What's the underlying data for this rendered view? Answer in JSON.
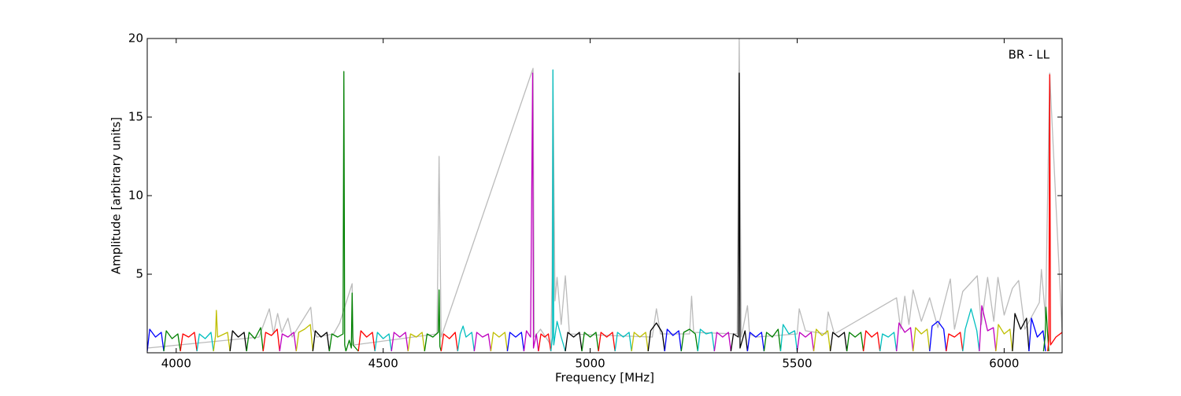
{
  "chart_data": {
    "type": "line",
    "annotation": "BR - LL",
    "x_label": "Frequency [MHz]",
    "y_label": "Amplitude [arbitrary units]",
    "xlim": [
      3930,
      6140
    ],
    "xticks": [
      4000,
      4500,
      5000,
      5500,
      6000
    ],
    "ylim": [
      0,
      20
    ],
    "yticks": [
      5,
      10,
      15,
      20
    ],
    "series": [
      {
        "color": "#bbbbbb",
        "x": [
          3930,
          4200,
          4225,
          4235,
          4245,
          4255,
          4270,
          4280,
          4325,
          4330,
          4340,
          4380,
          4395,
          4425,
          4426,
          4430,
          4630,
          4635,
          4640,
          4862,
          4865,
          4880,
          4905,
          4908,
          4910,
          4915,
          4920,
          4930,
          4940,
          4950,
          5150,
          5160,
          5170,
          5240,
          5245,
          5250,
          5355,
          5360,
          5365,
          5380,
          5385,
          5400,
          5500,
          5505,
          5520,
          5570,
          5575,
          5590,
          5740,
          5750,
          5760,
          5770,
          5780,
          5800,
          5820,
          5840,
          5870,
          5880,
          5900,
          5935,
          5945,
          5960,
          5975,
          5985,
          6000,
          6020,
          6035,
          6050,
          6085,
          6090,
          6100,
          6110,
          6140
        ],
        "values": [
          0.3,
          1.0,
          2.8,
          1.2,
          2.5,
          1.3,
          2.2,
          1.0,
          2.9,
          1.5,
          1.0,
          1.2,
          1.9,
          4.4,
          1.0,
          0.5,
          1.2,
          12.5,
          1.0,
          18.1,
          1.0,
          1.5,
          0.5,
          4.8,
          18.0,
          3.3,
          4.8,
          1.8,
          4.9,
          1.2,
          1.0,
          2.8,
          1.2,
          1.2,
          3.6,
          1.3,
          1.2,
          20.0,
          1.0,
          3.0,
          1.2,
          1.0,
          1.2,
          2.8,
          1.4,
          1.2,
          2.6,
          1.2,
          3.5,
          1.5,
          3.6,
          1.8,
          4.0,
          2.0,
          3.5,
          1.6,
          4.7,
          1.5,
          3.9,
          4.9,
          1.8,
          4.8,
          2.0,
          4.8,
          2.4,
          4.1,
          4.6,
          1.5,
          3.2,
          5.3,
          2.2,
          17.8,
          1.3
        ]
      },
      {
        "color": "#0000ff",
        "x": [
          3930,
          3936,
          3950,
          3964,
          3970
        ],
        "values": [
          0.1,
          1.5,
          1.0,
          1.3,
          0.1
        ]
      },
      {
        "color": "#008000",
        "x": [
          3970,
          3976,
          3990,
          4004,
          4010
        ],
        "values": [
          0.1,
          1.4,
          0.9,
          1.2,
          0.1
        ]
      },
      {
        "color": "#ff0000",
        "x": [
          4010,
          4016,
          4030,
          4044,
          4050
        ],
        "values": [
          0.1,
          1.2,
          1.0,
          1.3,
          0.1
        ]
      },
      {
        "color": "#00bfbf",
        "x": [
          4050,
          4056,
          4070,
          4084,
          4090
        ],
        "values": [
          0.1,
          1.2,
          0.9,
          1.3,
          0.1
        ]
      },
      {
        "color": "#bfbf00",
        "x": [
          4090,
          4095,
          4097,
          4100,
          4124,
          4130
        ],
        "values": [
          0.1,
          1.1,
          2.7,
          1.0,
          1.3,
          0.1
        ]
      },
      {
        "color": "#000000",
        "x": [
          4130,
          4136,
          4150,
          4164,
          4170
        ],
        "values": [
          0.1,
          1.4,
          1.0,
          1.3,
          0.1
        ]
      },
      {
        "color": "#008000",
        "x": [
          4170,
          4176,
          4190,
          4204,
          4210
        ],
        "values": [
          0.1,
          1.3,
          0.9,
          1.6,
          0.1
        ]
      },
      {
        "color": "#ff0000",
        "x": [
          4210,
          4216,
          4230,
          4244,
          4250
        ],
        "values": [
          0.1,
          1.3,
          1.1,
          1.5,
          0.1
        ]
      },
      {
        "color": "#bf00bf",
        "x": [
          4250,
          4256,
          4270,
          4284,
          4290
        ],
        "values": [
          0.1,
          1.2,
          1.0,
          1.3,
          0.1
        ]
      },
      {
        "color": "#bfbf00",
        "x": [
          4290,
          4296,
          4310,
          4324,
          4330
        ],
        "values": [
          0.1,
          1.3,
          1.5,
          1.8,
          0.1
        ]
      },
      {
        "color": "#000000",
        "x": [
          4330,
          4336,
          4350,
          4364,
          4370
        ],
        "values": [
          0.1,
          1.4,
          1.0,
          1.3,
          0.1
        ]
      },
      {
        "color": "#008000",
        "x": [
          4370,
          4376,
          4390,
          4403,
          4405,
          4407,
          4410
        ],
        "values": [
          0.1,
          1.2,
          1.0,
          1.2,
          17.9,
          0.5,
          0.1
        ]
      },
      {
        "color": "#008000",
        "x": [
          4410,
          4418,
          4423,
          4425,
          4427,
          4440
        ],
        "values": [
          0.1,
          0.8,
          0.3,
          3.8,
          0.5,
          0.1
        ]
      },
      {
        "color": "#ff0000",
        "x": [
          4440,
          4446,
          4460,
          4474,
          4480
        ],
        "values": [
          0.1,
          1.4,
          1.0,
          1.3,
          0.1
        ]
      },
      {
        "color": "#00bfbf",
        "x": [
          4480,
          4486,
          4500,
          4514,
          4520
        ],
        "values": [
          0.1,
          1.3,
          0.9,
          1.2,
          0.1
        ]
      },
      {
        "color": "#bf00bf",
        "x": [
          4520,
          4526,
          4540,
          4554,
          4560
        ],
        "values": [
          0.1,
          1.3,
          1.0,
          1.3,
          0.1
        ]
      },
      {
        "color": "#bfbf00",
        "x": [
          4560,
          4566,
          4580,
          4594,
          4600
        ],
        "values": [
          0.1,
          1.2,
          1.0,
          1.3,
          0.1
        ]
      },
      {
        "color": "#008000",
        "x": [
          4600,
          4606,
          4620,
          4633,
          4635,
          4637,
          4640
        ],
        "values": [
          0.1,
          1.2,
          1.0,
          1.3,
          4.0,
          0.4,
          0.1
        ]
      },
      {
        "color": "#ff0000",
        "x": [
          4640,
          4646,
          4660,
          4674,
          4680
        ],
        "values": [
          0.1,
          1.2,
          0.9,
          1.3,
          0.1
        ]
      },
      {
        "color": "#00bfbf",
        "x": [
          4680,
          4686,
          4693,
          4700,
          4714,
          4720
        ],
        "values": [
          0.1,
          1.2,
          1.7,
          1.0,
          1.3,
          0.1
        ]
      },
      {
        "color": "#bf00bf",
        "x": [
          4720,
          4726,
          4740,
          4754,
          4760
        ],
        "values": [
          0.1,
          1.3,
          1.0,
          1.2,
          0.1
        ]
      },
      {
        "color": "#bfbf00",
        "x": [
          4760,
          4766,
          4780,
          4794,
          4800
        ],
        "values": [
          0.1,
          1.3,
          1.0,
          1.3,
          0.1
        ]
      },
      {
        "color": "#0000ff",
        "x": [
          4800,
          4806,
          4820,
          4834,
          4840
        ],
        "values": [
          0.1,
          1.3,
          1.0,
          1.3,
          0.1
        ]
      },
      {
        "color": "#bf00bf",
        "x": [
          4840,
          4846,
          4856,
          4861,
          4863,
          4870,
          4875
        ],
        "values": [
          0.1,
          1.4,
          1.0,
          17.8,
          0.3,
          1.2,
          0.1
        ]
      },
      {
        "color": "#ff0000",
        "x": [
          4875,
          4881,
          4890,
          4899,
          4905
        ],
        "values": [
          0.1,
          1.2,
          1.0,
          1.2,
          0.1
        ]
      },
      {
        "color": "#00bfbf",
        "x": [
          4905,
          4909,
          4910,
          4912,
          4920,
          4930,
          4940
        ],
        "values": [
          0.1,
          1.0,
          18.0,
          0.5,
          2.0,
          1.0,
          0.1
        ]
      },
      {
        "color": "#000000",
        "x": [
          4940,
          4946,
          4960,
          4974,
          4980
        ],
        "values": [
          0.1,
          1.3,
          1.0,
          1.3,
          0.1
        ]
      },
      {
        "color": "#008000",
        "x": [
          4980,
          4986,
          5000,
          5014,
          5020
        ],
        "values": [
          0.1,
          1.3,
          1.0,
          1.3,
          0.1
        ]
      },
      {
        "color": "#ff0000",
        "x": [
          5020,
          5026,
          5040,
          5054,
          5060
        ],
        "values": [
          0.1,
          1.3,
          1.0,
          1.3,
          0.1
        ]
      },
      {
        "color": "#00bfbf",
        "x": [
          5060,
          5066,
          5080,
          5094,
          5100
        ],
        "values": [
          0.1,
          1.3,
          1.0,
          1.3,
          0.1
        ]
      },
      {
        "color": "#bfbf00",
        "x": [
          5100,
          5106,
          5120,
          5134,
          5140
        ],
        "values": [
          0.1,
          1.3,
          1.0,
          1.3,
          0.1
        ]
      },
      {
        "color": "#000000",
        "x": [
          5140,
          5146,
          5160,
          5174,
          5180
        ],
        "values": [
          0.1,
          1.4,
          1.9,
          1.3,
          0.1
        ]
      },
      {
        "color": "#0000ff",
        "x": [
          5180,
          5186,
          5200,
          5214,
          5220
        ],
        "values": [
          0.1,
          1.5,
          1.1,
          1.4,
          0.1
        ]
      },
      {
        "color": "#008000",
        "x": [
          5220,
          5226,
          5240,
          5254,
          5260
        ],
        "values": [
          0.1,
          1.3,
          1.5,
          1.2,
          0.1
        ]
      },
      {
        "color": "#00bfbf",
        "x": [
          5260,
          5266,
          5280,
          5294,
          5300
        ],
        "values": [
          0.1,
          1.5,
          1.2,
          1.3,
          0.1
        ]
      },
      {
        "color": "#bf00bf",
        "x": [
          5300,
          5306,
          5320,
          5334,
          5340
        ],
        "values": [
          0.1,
          1.3,
          1.0,
          1.3,
          0.1
        ]
      },
      {
        "color": "#000000",
        "x": [
          5340,
          5346,
          5358,
          5360,
          5362,
          5374,
          5380
        ],
        "values": [
          0.1,
          1.2,
          1.0,
          17.8,
          0.3,
          1.4,
          0.1
        ]
      },
      {
        "color": "#0000ff",
        "x": [
          5380,
          5386,
          5400,
          5414,
          5420
        ],
        "values": [
          0.1,
          1.3,
          1.0,
          1.3,
          0.1
        ]
      },
      {
        "color": "#008000",
        "x": [
          5420,
          5426,
          5440,
          5454,
          5460
        ],
        "values": [
          0.1,
          1.3,
          1.0,
          1.5,
          0.1
        ]
      },
      {
        "color": "#00bfbf",
        "x": [
          5460,
          5466,
          5480,
          5494,
          5500
        ],
        "values": [
          0.1,
          1.8,
          1.2,
          1.4,
          0.1
        ]
      },
      {
        "color": "#bf00bf",
        "x": [
          5500,
          5506,
          5520,
          5534,
          5540
        ],
        "values": [
          0.1,
          1.3,
          1.0,
          1.3,
          0.1
        ]
      },
      {
        "color": "#bfbf00",
        "x": [
          5540,
          5546,
          5560,
          5574,
          5580
        ],
        "values": [
          0.1,
          1.5,
          1.1,
          1.4,
          0.1
        ]
      },
      {
        "color": "#000000",
        "x": [
          5580,
          5586,
          5600,
          5614,
          5620
        ],
        "values": [
          0.1,
          1.3,
          1.0,
          1.3,
          0.1
        ]
      },
      {
        "color": "#008000",
        "x": [
          5620,
          5626,
          5640,
          5654,
          5660
        ],
        "values": [
          0.1,
          1.3,
          1.0,
          1.3,
          0.1
        ]
      },
      {
        "color": "#ff0000",
        "x": [
          5660,
          5666,
          5680,
          5694,
          5700
        ],
        "values": [
          0.1,
          1.4,
          1.0,
          1.3,
          0.1
        ]
      },
      {
        "color": "#00bfbf",
        "x": [
          5700,
          5706,
          5720,
          5734,
          5740
        ],
        "values": [
          0.1,
          1.2,
          1.0,
          1.3,
          0.1
        ]
      },
      {
        "color": "#bf00bf",
        "x": [
          5740,
          5746,
          5760,
          5774,
          5780
        ],
        "values": [
          0.1,
          1.9,
          1.3,
          1.6,
          0.1
        ]
      },
      {
        "color": "#bfbf00",
        "x": [
          5780,
          5786,
          5800,
          5814,
          5820
        ],
        "values": [
          0.1,
          1.6,
          1.2,
          1.5,
          0.1
        ]
      },
      {
        "color": "#0000ff",
        "x": [
          5820,
          5826,
          5840,
          5854,
          5860
        ],
        "values": [
          0.1,
          1.7,
          2.0,
          1.5,
          0.1
        ]
      },
      {
        "color": "#ff0000",
        "x": [
          5860,
          5866,
          5880,
          5894,
          5900
        ],
        "values": [
          0.1,
          1.2,
          1.0,
          1.3,
          0.1
        ]
      },
      {
        "color": "#00bfbf",
        "x": [
          5900,
          5906,
          5920,
          5934,
          5940
        ],
        "values": [
          0.1,
          1.5,
          2.8,
          1.4,
          0.1
        ]
      },
      {
        "color": "#bf00bf",
        "x": [
          5940,
          5946,
          5960,
          5974,
          5980
        ],
        "values": [
          0.1,
          3.0,
          1.4,
          1.6,
          0.1
        ]
      },
      {
        "color": "#bfbf00",
        "x": [
          5980,
          5986,
          6000,
          6014,
          6020
        ],
        "values": [
          0.1,
          1.8,
          1.2,
          1.5,
          0.1
        ]
      },
      {
        "color": "#000000",
        "x": [
          6020,
          6026,
          6040,
          6054,
          6060
        ],
        "values": [
          0.1,
          2.5,
          1.5,
          2.2,
          0.1
        ]
      },
      {
        "color": "#0000ff",
        "x": [
          6060,
          6066,
          6080,
          6094,
          6100
        ],
        "values": [
          0.1,
          2.2,
          1.0,
          1.4,
          0.1
        ]
      },
      {
        "color": "#008000",
        "x": [
          6095,
          6099,
          6101,
          6105,
          6108
        ],
        "values": [
          0.1,
          1.0,
          2.9,
          1.2,
          0.1
        ]
      },
      {
        "color": "#ff0000",
        "x": [
          6105,
          6108,
          6110,
          6112,
          6125,
          6140
        ],
        "values": [
          0.1,
          0.8,
          17.7,
          0.5,
          1.0,
          1.3
        ]
      }
    ]
  }
}
